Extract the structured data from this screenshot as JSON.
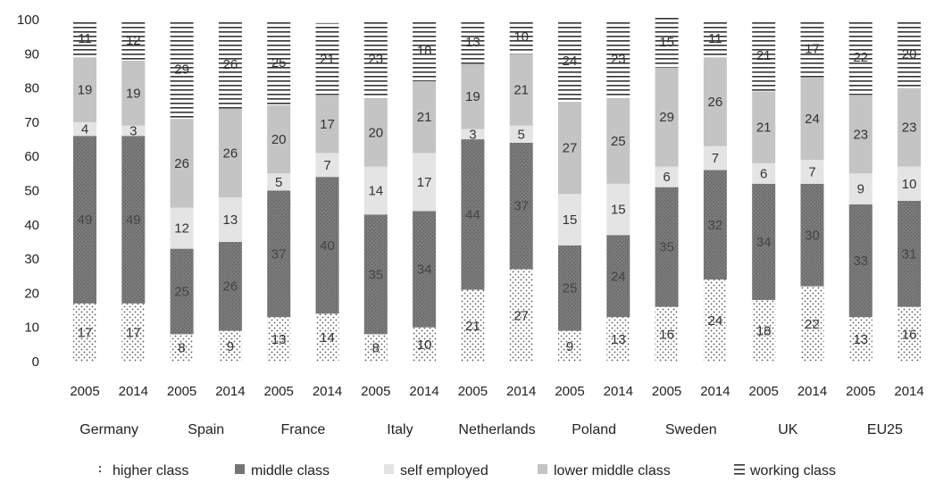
{
  "chart_data": {
    "type": "bar",
    "stacked": true,
    "ylim": [
      0,
      100
    ],
    "yticks": [
      0,
      10,
      20,
      30,
      40,
      50,
      60,
      70,
      80,
      90,
      100
    ],
    "grid": false,
    "legend_position": "bottom",
    "title": "",
    "xlabel": "",
    "ylabel": "",
    "groups": [
      "Germany",
      "Spain",
      "France",
      "Italy",
      "Netherlands",
      "Poland",
      "Sweden",
      "UK",
      "EU25"
    ],
    "bars": [
      {
        "group": "Germany",
        "year": "2005"
      },
      {
        "group": "Germany",
        "year": "2014"
      },
      {
        "group": "Spain",
        "year": "2005"
      },
      {
        "group": "Spain",
        "year": "2014"
      },
      {
        "group": "France",
        "year": "2005"
      },
      {
        "group": "France",
        "year": "2014"
      },
      {
        "group": "Italy",
        "year": "2005"
      },
      {
        "group": "Italy",
        "year": "2014"
      },
      {
        "group": "Netherlands",
        "year": "2005"
      },
      {
        "group": "Netherlands",
        "year": "2014"
      },
      {
        "group": "Poland",
        "year": "2005"
      },
      {
        "group": "Poland",
        "year": "2014"
      },
      {
        "group": "Sweden",
        "year": "2005"
      },
      {
        "group": "Sweden",
        "year": "2014"
      },
      {
        "group": "UK",
        "year": "2005"
      },
      {
        "group": "UK",
        "year": "2014"
      },
      {
        "group": "EU25",
        "year": "2005"
      },
      {
        "group": "EU25",
        "year": "2014"
      }
    ],
    "series": [
      {
        "name": "higher class",
        "pattern": "dots",
        "values": [
          17,
          17,
          8,
          9,
          13,
          14,
          8,
          10,
          21,
          27,
          9,
          13,
          16,
          24,
          18,
          22,
          13,
          16
        ]
      },
      {
        "name": "middle class",
        "pattern": "dark",
        "values": [
          49,
          49,
          25,
          26,
          37,
          40,
          35,
          34,
          44,
          37,
          25,
          24,
          35,
          32,
          34,
          30,
          33,
          31
        ]
      },
      {
        "name": "self employed",
        "pattern": "light",
        "values": [
          4,
          3,
          12,
          13,
          5,
          7,
          14,
          17,
          3,
          5,
          15,
          15,
          6,
          7,
          6,
          7,
          9,
          10
        ]
      },
      {
        "name": "lower middle class",
        "pattern": "mid",
        "values": [
          19,
          19,
          26,
          26,
          20,
          17,
          20,
          21,
          19,
          21,
          27,
          25,
          29,
          26,
          21,
          24,
          23,
          23
        ]
      },
      {
        "name": "working class",
        "pattern": "hlines",
        "values": [
          11,
          12,
          29,
          26,
          25,
          21,
          23,
          18,
          13,
          10,
          24,
          23,
          15,
          11,
          21,
          17,
          22,
          20
        ]
      }
    ],
    "colors": {
      "dark": "#7a7a7a",
      "mid": "#c4c4c4",
      "light": "#e4e4e4",
      "lines": "#333333"
    }
  }
}
